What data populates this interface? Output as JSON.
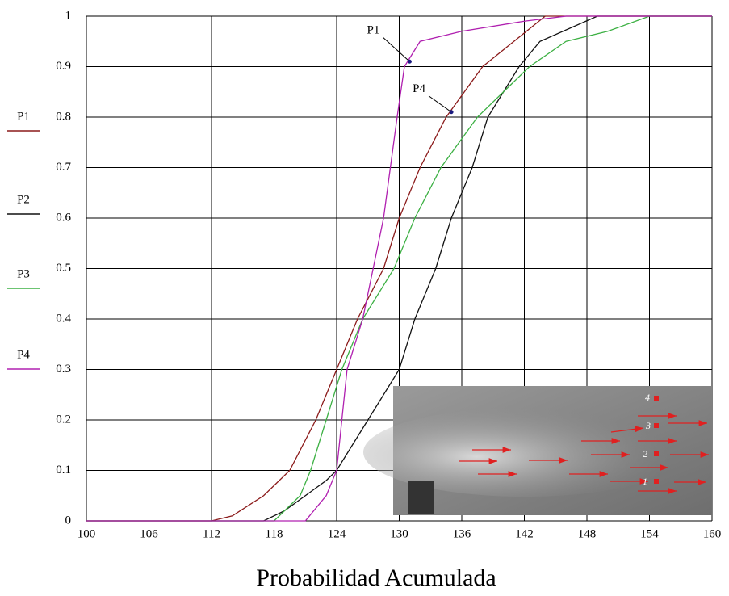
{
  "chart_data": {
    "type": "line",
    "caption": "Probabilidad Acumulada",
    "xlim": [
      100,
      160
    ],
    "xticks": [
      100,
      106,
      112,
      118,
      124,
      130,
      136,
      142,
      148,
      154,
      160
    ],
    "ylim": [
      0,
      1
    ],
    "yticks": [
      0,
      0.1,
      0.2,
      0.3,
      0.4,
      0.5,
      0.6,
      0.7,
      0.8,
      0.9,
      1
    ],
    "grid": true,
    "legend": "left",
    "series": [
      {
        "name": "P1",
        "color": "#8b1a1a",
        "x": [
          100,
          112,
          114,
          117,
          119.5,
          122,
          124,
          126,
          128.5,
          130,
          132,
          134.5,
          138,
          141,
          144,
          160
        ],
        "values": [
          0,
          0,
          0.01,
          0.05,
          0.1,
          0.2,
          0.3,
          0.4,
          0.5,
          0.6,
          0.7,
          0.8,
          0.9,
          0.95,
          1,
          1
        ]
      },
      {
        "name": "P2",
        "color": "#111111",
        "x": [
          100,
          117,
          119,
          121,
          123,
          124,
          127,
          130,
          131.5,
          133.5,
          135,
          137,
          138.5,
          141.5,
          143.5,
          149,
          160
        ],
        "values": [
          0,
          0,
          0.02,
          0.05,
          0.08,
          0.1,
          0.2,
          0.3,
          0.4,
          0.5,
          0.6,
          0.7,
          0.8,
          0.9,
          0.95,
          1,
          1
        ]
      },
      {
        "name": "P3",
        "color": "#3cb043",
        "x": [
          100,
          118,
          119,
          120.5,
          121.5,
          123,
          124.5,
          126.5,
          129.5,
          131.5,
          134,
          137.5,
          140,
          142.5,
          146,
          150,
          154,
          160
        ],
        "values": [
          0,
          0,
          0.02,
          0.05,
          0.1,
          0.2,
          0.3,
          0.4,
          0.5,
          0.6,
          0.7,
          0.8,
          0.85,
          0.9,
          0.95,
          0.97,
          1,
          1
        ]
      },
      {
        "name": "P4",
        "color": "#b020b0",
        "x": [
          100,
          121,
          123,
          124,
          125,
          126.5,
          128.5,
          129.8,
          130.5,
          132,
          136,
          142,
          146,
          160
        ],
        "values": [
          0,
          0,
          0.05,
          0.1,
          0.3,
          0.4,
          0.6,
          0.8,
          0.9,
          0.95,
          0.97,
          0.99,
          1,
          1
        ]
      }
    ],
    "annotations": [
      {
        "text": "P1",
        "x": 131,
        "y": 0.91
      },
      {
        "text": "P4",
        "x": 135,
        "y": 0.81
      }
    ]
  },
  "inset": {
    "point_labels": [
      "1",
      "2",
      "3",
      "4"
    ]
  }
}
